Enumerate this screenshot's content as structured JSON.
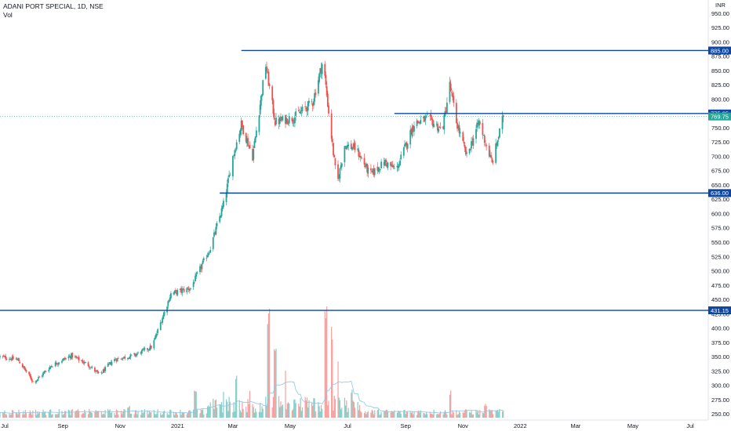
{
  "header": {
    "symbol_line": "ADANI PORT SPECIAL, 1D, NSE",
    "volume_label": "Vol"
  },
  "currency_label": "INR",
  "colors": {
    "up": "#26a69a",
    "down": "#ef5350",
    "level_line": "#0d47a1",
    "level_tag": "#0d47a1",
    "last_price_tag": "#26a69a",
    "volume_ma": "#8ec5e6"
  },
  "chart_data": {
    "type": "candlestick",
    "title": "ADANI PORT SPECIAL, 1D, NSE",
    "y_axis": {
      "ticks": [
        "950.00",
        "925.00",
        "900.00",
        "875.00",
        "850.00",
        "825.00",
        "800.00",
        "775.00",
        "750.00",
        "725.00",
        "700.00",
        "675.00",
        "650.00",
        "625.00",
        "600.00",
        "575.00",
        "550.00",
        "525.00",
        "500.00",
        "475.00",
        "450.00",
        "425.00",
        "400.00",
        "375.00",
        "350.00",
        "325.00",
        "300.00",
        "275.00",
        "250.00"
      ],
      "range": [
        240,
        955
      ],
      "position": "right"
    },
    "x_axis": {
      "ticks": [
        "Jul",
        "Sep",
        "Nov",
        "2021",
        "Mar",
        "May",
        "Jul",
        "Sep",
        "Nov",
        "2022",
        "Mar",
        "May",
        "Jul"
      ]
    },
    "horizontal_levels": [
      {
        "label": "885.00",
        "value": 885.0,
        "start_tick": "Mar"
      },
      {
        "label": "775.05",
        "value": 775.05,
        "start_tick": "Aug"
      },
      {
        "label": "636.00",
        "value": 636.0,
        "start_tick": "Feb"
      },
      {
        "label": "431.15",
        "value": 431.15,
        "start_tick": "Jul"
      }
    ],
    "last_price": {
      "label": "769.75",
      "value": 769.75
    },
    "price_path": [
      [
        "2020-06-26",
        350
      ],
      [
        "2020-07-15",
        345
      ],
      [
        "2020-08-01",
        305
      ],
      [
        "2020-08-20",
        335
      ],
      [
        "2020-09-10",
        352
      ],
      [
        "2020-09-28",
        336
      ],
      [
        "2020-10-10",
        318
      ],
      [
        "2020-10-25",
        345
      ],
      [
        "2020-11-15",
        352
      ],
      [
        "2020-12-05",
        368
      ],
      [
        "2020-12-25",
        460
      ],
      [
        "2021-01-15",
        470
      ],
      [
        "2021-02-05",
        540
      ],
      [
        "2021-02-20",
        622
      ],
      [
        "2021-03-01",
        700
      ],
      [
        "2021-03-10",
        756
      ],
      [
        "2021-03-22",
        700
      ],
      [
        "2021-04-05",
        860
      ],
      [
        "2021-04-15",
        760
      ],
      [
        "2021-05-05",
        768
      ],
      [
        "2021-05-25",
        795
      ],
      [
        "2021-06-05",
        868
      ],
      [
        "2021-06-12",
        762
      ],
      [
        "2021-06-20",
        650
      ],
      [
        "2021-06-28",
        720
      ],
      [
        "2021-07-10",
        714
      ],
      [
        "2021-07-25",
        668
      ],
      [
        "2021-08-10",
        690
      ],
      [
        "2021-08-22",
        676
      ],
      [
        "2021-09-10",
        758
      ],
      [
        "2021-09-25",
        766
      ],
      [
        "2021-10-10",
        745
      ],
      [
        "2021-10-18",
        825
      ],
      [
        "2021-10-25",
        760
      ],
      [
        "2021-11-05",
        700
      ],
      [
        "2021-11-18",
        760
      ],
      [
        "2021-12-02",
        688
      ],
      [
        "2021-12-14",
        769.75
      ]
    ],
    "volume_spikes": [
      [
        "2020-11-10",
        18
      ],
      [
        "2021-01-20",
        42
      ],
      [
        "2021-02-20",
        48
      ],
      [
        "2021-03-05",
        62
      ],
      [
        "2021-03-20",
        40
      ],
      [
        "2021-04-08",
        165
      ],
      [
        "2021-04-15",
        110
      ],
      [
        "2021-04-25",
        72
      ],
      [
        "2021-06-08",
        180
      ],
      [
        "2021-06-14",
        142
      ],
      [
        "2021-06-20",
        100
      ],
      [
        "2021-07-05",
        45
      ],
      [
        "2021-10-18",
        40
      ],
      [
        "2021-11-25",
        22
      ]
    ]
  }
}
